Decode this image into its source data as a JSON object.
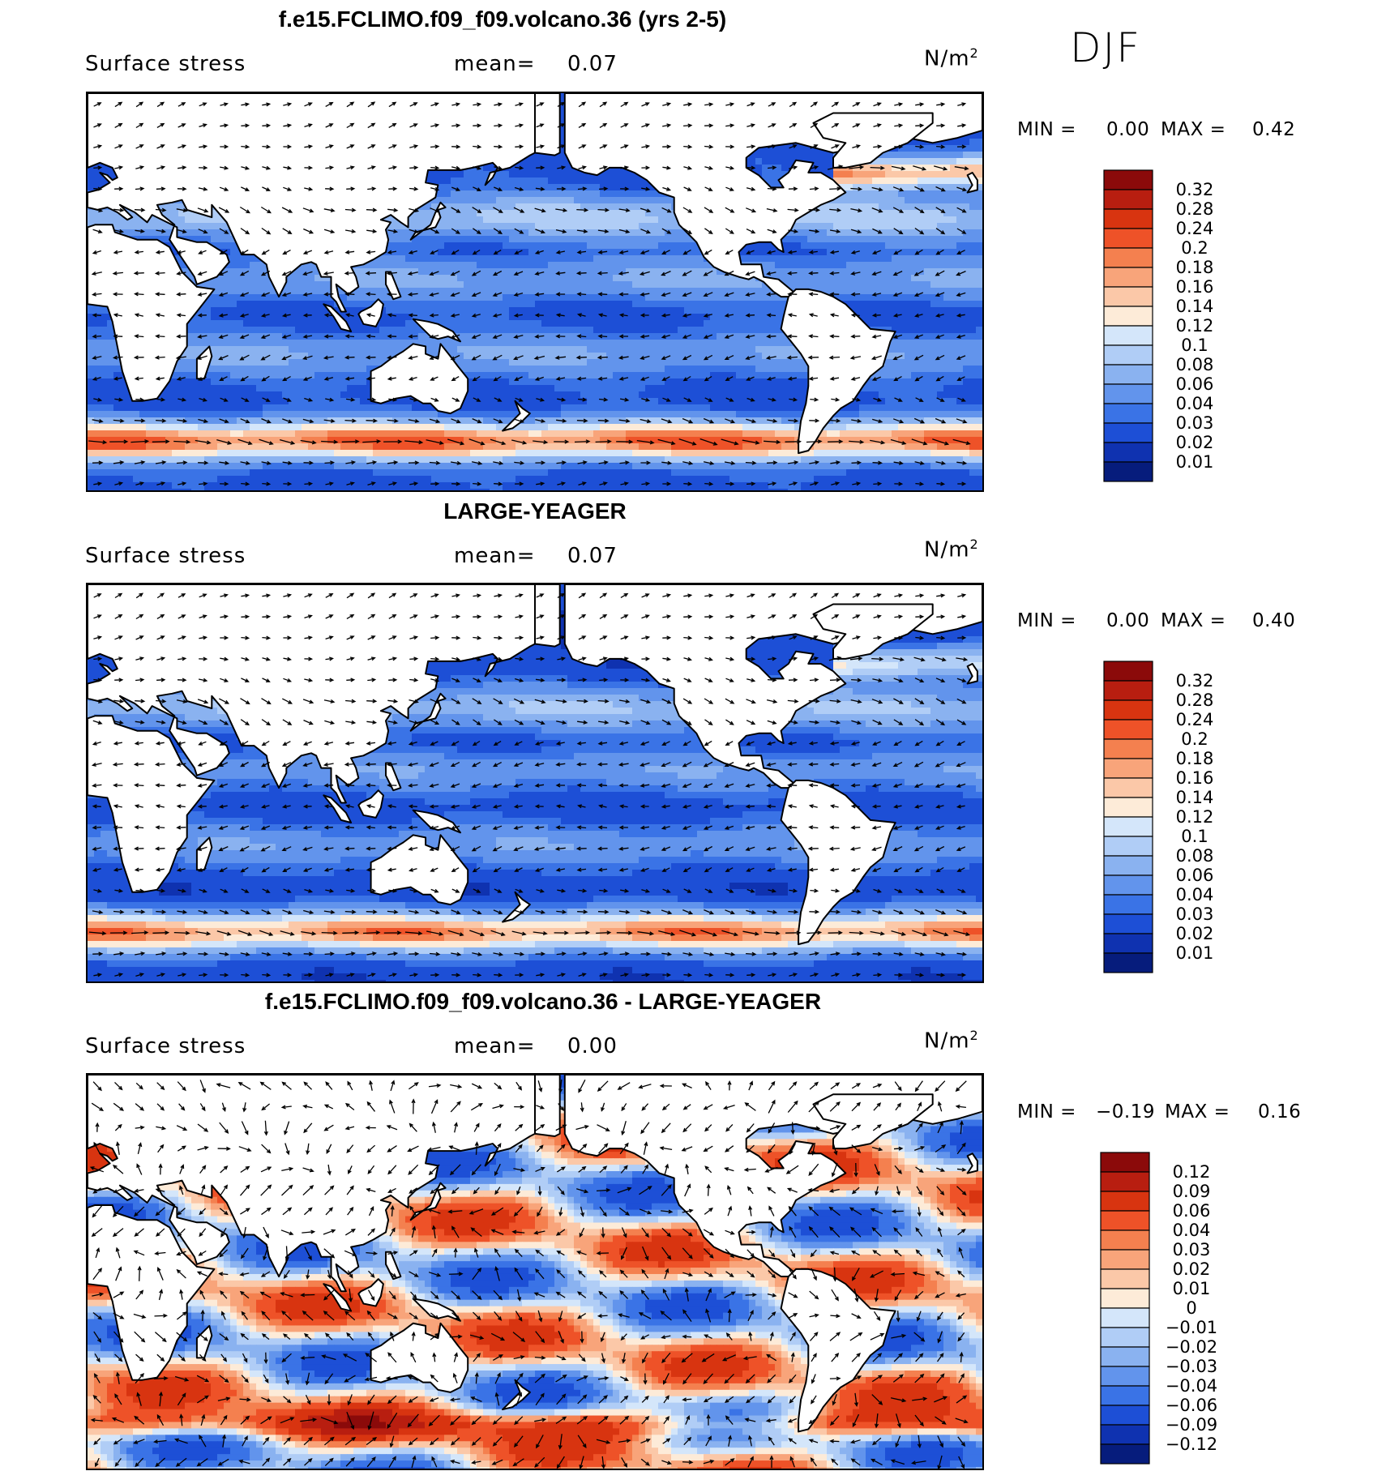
{
  "season_label": "DJF",
  "panels": [
    {
      "id": "model",
      "title": "f.e15.FCLIMO.f09_f09.volcano.36 (yrs 2-5)",
      "variable": "Surface stress",
      "mean_label": "mean=",
      "mean_value": "0.07",
      "units_base": "N/m",
      "units_exp": "2",
      "min_label": "MIN =",
      "min_value": "0.00",
      "max_label": "MAX =",
      "max_value": "0.42",
      "colorbar": {
        "ticks": [
          "0.32",
          "0.28",
          "0.24",
          "0.2",
          "0.18",
          "0.16",
          "0.14",
          "0.12",
          "0.1",
          "0.08",
          "0.06",
          "0.04",
          "0.03",
          "0.02",
          "0.01"
        ],
        "colors": [
          "#8b0a0a",
          "#b81e10",
          "#d83410",
          "#ee5228",
          "#f4804f",
          "#f8a47a",
          "#fbc8a8",
          "#fdebd8",
          "#d4e6fa",
          "#b0cdf6",
          "#8ab2f0",
          "#6294ec",
          "#3a73e6",
          "#1d4fd6",
          "#0f32b0",
          "#061c7c"
        ]
      }
    },
    {
      "id": "obs",
      "title": "LARGE-YEAGER",
      "variable": "Surface stress",
      "mean_label": "mean=",
      "mean_value": "0.07",
      "units_base": "N/m",
      "units_exp": "2",
      "min_label": "MIN =",
      "min_value": "0.00",
      "max_label": "MAX =",
      "max_value": "0.40",
      "colorbar": {
        "ticks": [
          "0.32",
          "0.28",
          "0.24",
          "0.2",
          "0.18",
          "0.16",
          "0.14",
          "0.12",
          "0.1",
          "0.08",
          "0.06",
          "0.04",
          "0.03",
          "0.02",
          "0.01"
        ],
        "colors": [
          "#8b0a0a",
          "#b81e10",
          "#d83410",
          "#ee5228",
          "#f4804f",
          "#f8a47a",
          "#fbc8a8",
          "#fdebd8",
          "#d4e6fa",
          "#b0cdf6",
          "#8ab2f0",
          "#6294ec",
          "#3a73e6",
          "#1d4fd6",
          "#0f32b0",
          "#061c7c"
        ]
      }
    },
    {
      "id": "diff",
      "title": "f.e15.FCLIMO.f09_f09.volcano.36 - LARGE-YEAGER",
      "variable": "Surface stress",
      "mean_label": "mean=",
      "mean_value": "0.00",
      "units_base": "N/m",
      "units_exp": "2",
      "min_label": "MIN =",
      "min_value": "−0.19",
      "max_label": "MAX =",
      "max_value": "0.16",
      "colorbar": {
        "ticks": [
          "0.12",
          "0.09",
          "0.06",
          "0.04",
          "0.03",
          "0.02",
          "0.01",
          "0",
          "−0.01",
          "−0.02",
          "−0.03",
          "−0.04",
          "−0.06",
          "−0.09",
          "−0.12"
        ],
        "colors": [
          "#8b0a0a",
          "#b81e10",
          "#d83410",
          "#ee5228",
          "#f4804f",
          "#f8a47a",
          "#fbc8a8",
          "#fdebd8",
          "#d4e6fa",
          "#b0cdf6",
          "#8ab2f0",
          "#6294ec",
          "#3a73e6",
          "#1d4fd6",
          "#0f32b0",
          "#061c7c"
        ]
      }
    }
  ]
}
